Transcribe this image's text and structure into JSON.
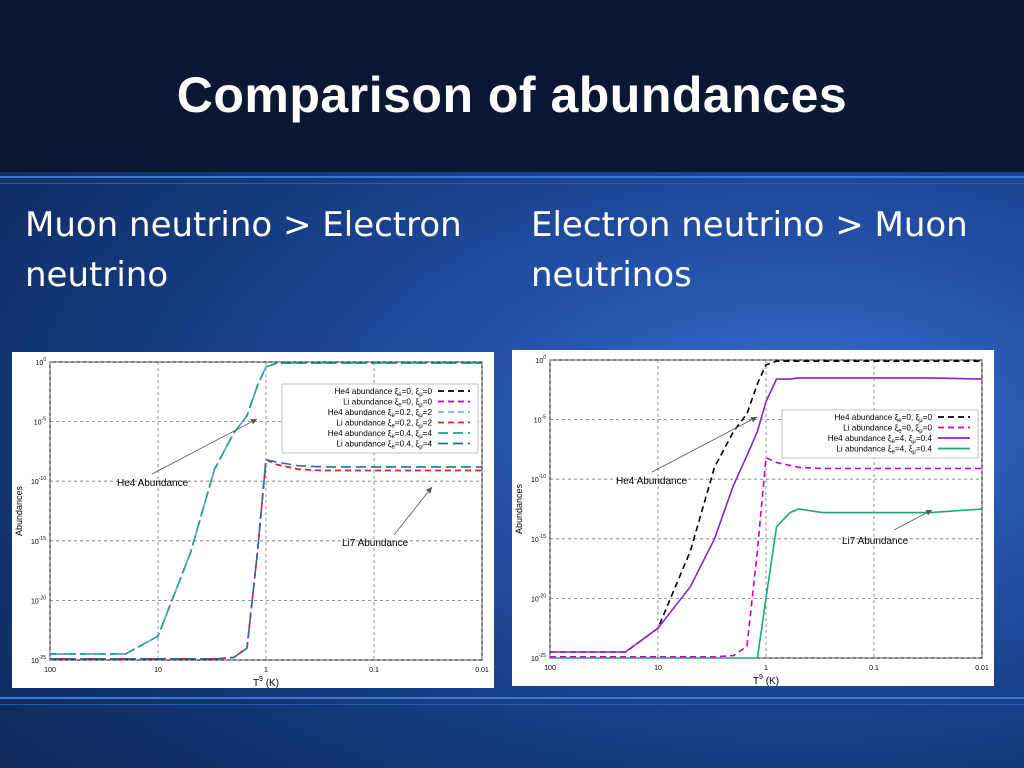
{
  "slide": {
    "title": "Comparison of abundances",
    "left_heading": "Muon neutrino > Electron neutrino",
    "right_heading": "Electron neutrino > Muon neutrinos"
  },
  "chart_data": [
    {
      "type": "line",
      "xlabel": "T",
      "xlabel_sup": "9",
      "xlabel_unit": "(K)",
      "ylabel": "Abundances",
      "x_log": true,
      "x_reversed": true,
      "xlim": [
        100,
        0.01
      ],
      "ylim_exponent": [
        -25,
        0
      ],
      "y_ticks": [
        {
          "base": "10",
          "exp": "0"
        },
        {
          "base": "10",
          "exp": "-5"
        },
        {
          "base": "10",
          "exp": "-10"
        },
        {
          "base": "10",
          "exp": "-15"
        },
        {
          "base": "10",
          "exp": "-20"
        },
        {
          "base": "10",
          "exp": "-25"
        }
      ],
      "x_ticks": [
        "100",
        "10",
        "1",
        "0.1",
        "0.01"
      ],
      "grid": true,
      "legend_position": "top-right",
      "annotations": [
        {
          "text": "He4 Abundance"
        },
        {
          "text": "Li7 Abundance"
        }
      ],
      "series": [
        {
          "name": "He4 abundance ξₑ=0, ξμ=0",
          "label": "He4 abundance",
          "xi_e": "0",
          "xi_mu": "0",
          "color": "#000000",
          "dash": "dashed",
          "x": [
            100,
            20,
            10,
            5,
            3,
            2,
            1.5,
            1.2,
            1,
            0.8,
            0.5,
            0.1,
            0.01
          ],
          "y_exp": [
            -24.5,
            -24.5,
            -23,
            -16,
            -9,
            -6,
            -4.5,
            -2,
            -0.4,
            -0.1,
            -0.1,
            -0.1,
            -0.1
          ]
        },
        {
          "name": "Li abundance ξₑ=0, ξμ=0",
          "label": "Li abundance",
          "xi_e": "0",
          "xi_mu": "0",
          "color": "#cc00cc",
          "dash": "dashed",
          "x": [
            100,
            20,
            10,
            5,
            3,
            2,
            1.5,
            1.2,
            1,
            0.8,
            0.5,
            0.3,
            0.1,
            0.01
          ],
          "y_exp": [
            -24.9,
            -24.9,
            -24.9,
            -24.9,
            -24.9,
            -24.8,
            -24,
            -16,
            -8.2,
            -8.6,
            -9,
            -9.1,
            -9.1,
            -9.1
          ]
        },
        {
          "name": "He4 abundance ξₑ=0.2, ξμ=2",
          "label": "He4 abundance",
          "xi_e": "0.2",
          "xi_mu": "2",
          "color": "#6fb4e6",
          "dash": "dashed",
          "x": [
            100,
            20,
            10,
            5,
            3,
            2,
            1.5,
            1.2,
            1,
            0.8,
            0.5,
            0.1,
            0.01
          ],
          "y_exp": [
            -24.5,
            -24.5,
            -23,
            -16,
            -9,
            -6,
            -4.5,
            -2,
            -0.4,
            -0.1,
            -0.1,
            -0.1,
            -0.1
          ]
        },
        {
          "name": "Li abundance ξₑ=0.2, ξμ=2",
          "label": "Li abundance",
          "xi_e": "0.2",
          "xi_mu": "2",
          "color": "#e62020",
          "dash": "dashed",
          "x": [
            100,
            20,
            10,
            5,
            3,
            2,
            1.5,
            1.2,
            1,
            0.8,
            0.5,
            0.3,
            0.1,
            0.01
          ],
          "y_exp": [
            -24.9,
            -24.9,
            -24.9,
            -24.9,
            -24.9,
            -24.8,
            -24,
            -16,
            -8.2,
            -8.6,
            -9,
            -9.1,
            -9.1,
            -9.1
          ]
        },
        {
          "name": "He4 abundance ξₑ=0.4, ξμ=4",
          "label": "He4 abundance",
          "xi_e": "0.4",
          "xi_mu": "4",
          "color": "#1fa38c",
          "dash": "longdash",
          "x": [
            100,
            20,
            10,
            5,
            3,
            2,
            1.5,
            1.2,
            1,
            0.8,
            0.5,
            0.1,
            0.01
          ],
          "y_exp": [
            -24.5,
            -24.5,
            -23,
            -16,
            -9,
            -6,
            -4.5,
            -2,
            -0.4,
            -0.1,
            -0.1,
            -0.1,
            -0.1
          ]
        },
        {
          "name": "Li abundance ξₑ=0.4, ξμ=4",
          "label": "Li abundance",
          "xi_e": "0.4",
          "xi_mu": "4",
          "color": "#2c6aa0",
          "dash": "longdash",
          "x": [
            100,
            20,
            10,
            5,
            3,
            2,
            1.5,
            1.2,
            1,
            0.8,
            0.5,
            0.3,
            0.1,
            0.01
          ],
          "y_exp": [
            -24.9,
            -24.9,
            -24.9,
            -24.9,
            -24.9,
            -24.8,
            -24,
            -16,
            -8.2,
            -8.4,
            -8.7,
            -8.8,
            -8.8,
            -8.8
          ]
        }
      ]
    },
    {
      "type": "line",
      "xlabel": "T",
      "xlabel_sup": "9",
      "xlabel_unit": "(K)",
      "ylabel": "Abundances",
      "x_log": true,
      "x_reversed": true,
      "xlim": [
        100,
        0.01
      ],
      "ylim_exponent": [
        -25,
        0
      ],
      "y_ticks": [
        {
          "base": "10",
          "exp": "0"
        },
        {
          "base": "10",
          "exp": "-5"
        },
        {
          "base": "10",
          "exp": "-10"
        },
        {
          "base": "10",
          "exp": "-15"
        },
        {
          "base": "10",
          "exp": "-20"
        },
        {
          "base": "10",
          "exp": "-25"
        }
      ],
      "x_ticks": [
        "100",
        "10",
        "1",
        "0.1",
        "0.01"
      ],
      "grid": true,
      "legend_position": "top-right",
      "annotations": [
        {
          "text": "He4 Abundance"
        },
        {
          "text": "Li7 Abundance"
        }
      ],
      "series": [
        {
          "name": "He4 abundance ξₑ=0, ξμ=0",
          "label": "He4 abundance",
          "xi_e": "0",
          "xi_mu": "0",
          "color": "#000000",
          "dash": "dashed",
          "x": [
            100,
            20,
            10,
            5,
            3,
            2,
            1.5,
            1.2,
            1,
            0.8,
            0.5,
            0.1,
            0.01
          ],
          "y_exp": [
            -24.5,
            -24.5,
            -22.5,
            -16,
            -9,
            -6,
            -4.5,
            -2,
            -0.4,
            -0.1,
            -0.1,
            -0.1,
            -0.1
          ]
        },
        {
          "name": "Li abundance ξₑ=0, ξμ=0",
          "label": "Li abundance",
          "xi_e": "0",
          "xi_mu": "0",
          "color": "#cc00cc",
          "dash": "dashed",
          "x": [
            100,
            20,
            10,
            5,
            3,
            2,
            1.5,
            1.2,
            1,
            0.8,
            0.5,
            0.3,
            0.1,
            0.01
          ],
          "y_exp": [
            -24.9,
            -24.9,
            -24.9,
            -24.9,
            -24.9,
            -24.8,
            -24,
            -16,
            -8.2,
            -8.6,
            -9,
            -9.1,
            -9.1,
            -9.1
          ]
        },
        {
          "name": "He4 abundance ξₑ=4, ξμ=0.4",
          "label": "He4 abundance",
          "xi_e": "4",
          "xi_mu": "0.4",
          "color": "#8e24c8",
          "dash": "solid",
          "x": [
            100,
            20,
            10,
            5,
            3,
            2,
            1.5,
            1.2,
            1,
            0.8,
            0.6,
            0.5,
            0.1,
            0.03,
            0.01
          ],
          "y_exp": [
            -24.5,
            -24.5,
            -22.5,
            -19,
            -15,
            -10.5,
            -8,
            -6,
            -3.5,
            -1.6,
            -1.6,
            -1.5,
            -1.5,
            -1.5,
            -1.6
          ]
        },
        {
          "name": "Li abundance ξₑ=4, ξμ=0.4",
          "label": "Li abundance",
          "xi_e": "4",
          "xi_mu": "0.4",
          "color": "#1aa87c",
          "dash": "solid",
          "x": [
            100,
            20,
            10,
            5,
            3,
            2,
            1.2,
            1,
            0.8,
            0.6,
            0.5,
            0.3,
            0.1,
            0.03,
            0.01
          ],
          "y_exp": [
            -25,
            -25,
            -25,
            -25,
            -25,
            -25,
            -25,
            -20,
            -14,
            -12.8,
            -12.5,
            -12.8,
            -12.8,
            -12.8,
            -12.5
          ]
        }
      ]
    }
  ]
}
